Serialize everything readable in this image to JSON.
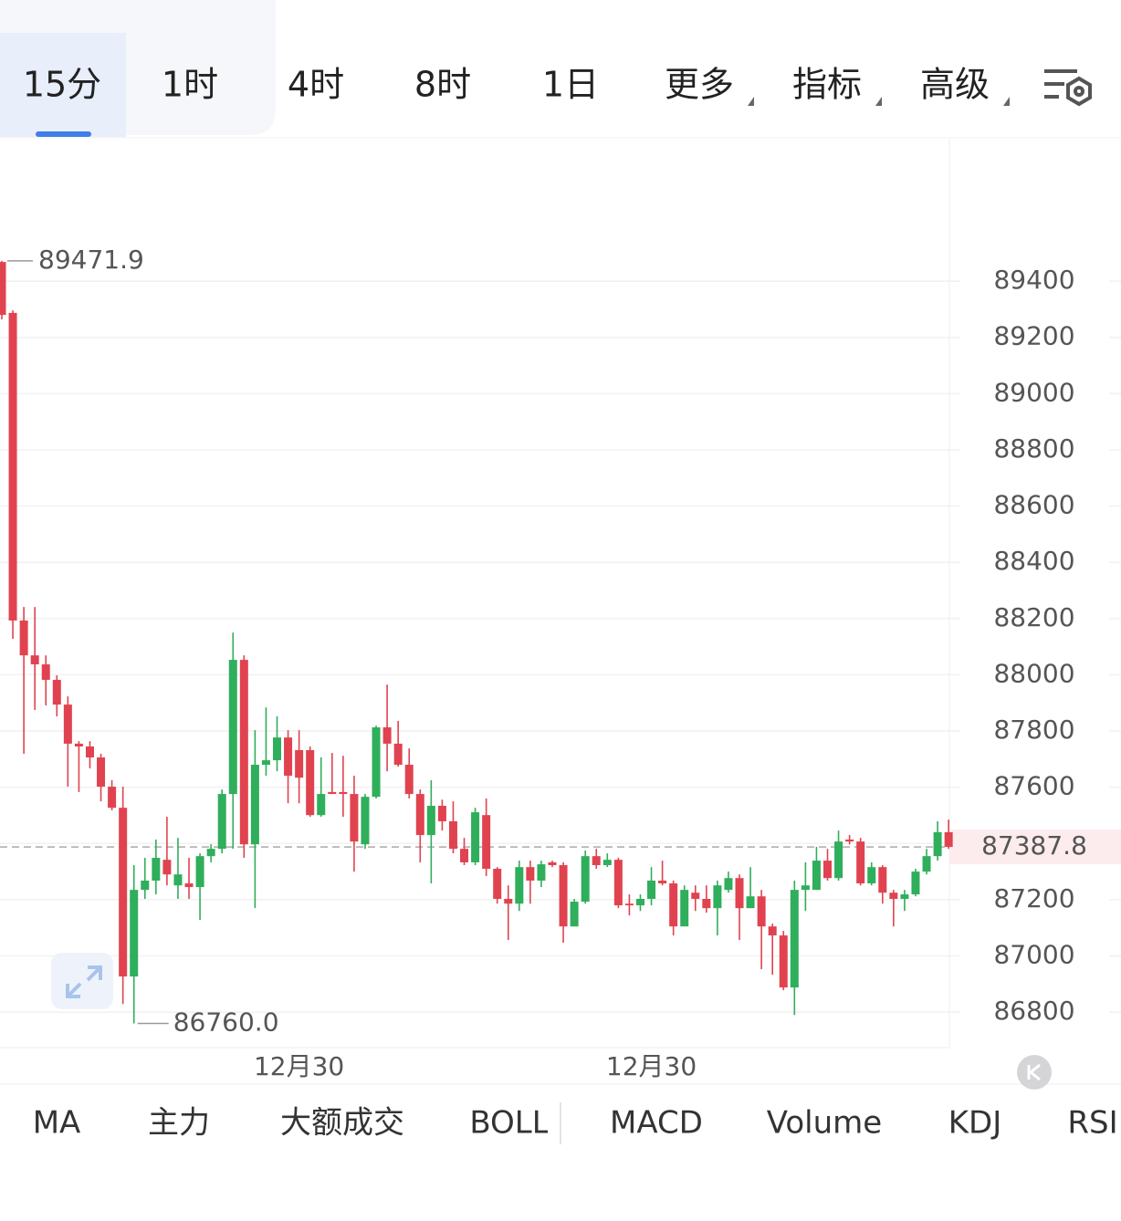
{
  "tabs": {
    "items": [
      "15分",
      "1时",
      "4时",
      "8时",
      "1日",
      "更多",
      "指标",
      "高级"
    ],
    "selected": 0
  },
  "chart_data": {
    "type": "candlestick",
    "categories": [
      null,
      null,
      null,
      null,
      null,
      null,
      null,
      null,
      null,
      null,
      null,
      null,
      null,
      null,
      null,
      null,
      null,
      null,
      null,
      null,
      null,
      null,
      null,
      null,
      null,
      null,
      null,
      "12月30",
      null,
      null,
      null,
      null,
      null,
      null,
      null,
      null,
      null,
      null,
      null,
      null,
      null,
      null,
      null,
      null,
      null,
      null,
      null,
      null,
      null,
      null,
      null,
      null,
      null,
      null,
      null,
      null,
      null,
      null,
      null,
      "12月30",
      null,
      null,
      null,
      null,
      null,
      null,
      null,
      null,
      null,
      null,
      null,
      null,
      null,
      null,
      null,
      null,
      null,
      null,
      null,
      null,
      null,
      null,
      null,
      null,
      null,
      null,
      null
    ],
    "open": [
      89468,
      89287,
      88193,
      88069,
      88037,
      87982,
      87894,
      87755,
      87745,
      87706,
      87602,
      87527,
      86927,
      87235,
      87268,
      87342,
      87251,
      87258,
      87245,
      87355,
      87381,
      87576,
      88053,
      87397,
      87680,
      87696,
      87777,
      87732,
      87732,
      87501,
      87583,
      87583,
      87576,
      87397,
      87566,
      87813,
      87755,
      87680,
      87576,
      87430,
      87534,
      87479,
      87381,
      87333,
      87501,
      87310,
      87203,
      87186,
      87316,
      87268,
      87333,
      87323,
      87105,
      87193,
      87355,
      87323,
      87342,
      87186,
      87180,
      87203,
      87268,
      87258,
      87105,
      87225,
      87203,
      87170,
      87235,
      87277,
      87170,
      87212,
      87105,
      87073,
      86888,
      87235,
      87235,
      87339,
      87277,
      87414,
      87407,
      87258,
      87316,
      87225,
      87203,
      87219,
      87300,
      87355,
      87440
    ],
    "high": [
      89471.9,
      89296,
      88241,
      88241,
      88069,
      87998,
      87923,
      87764,
      87764,
      87719,
      87625,
      87602,
      87323,
      87349,
      87414,
      87495,
      87420,
      87349,
      87365,
      87397,
      87592,
      88150,
      88069,
      87803,
      87884,
      87852,
      87803,
      87803,
      87745,
      87706,
      87722,
      87712,
      87641,
      87576,
      87819,
      87965,
      87836,
      87738,
      87592,
      87625,
      87556,
      87550,
      87420,
      87527,
      87560,
      87316,
      87251,
      87339,
      87339,
      87339,
      87339,
      87333,
      87203,
      87375,
      87381,
      87365,
      87349,
      87219,
      87219,
      87316,
      87339,
      87268,
      87251,
      87251,
      87251,
      87268,
      87300,
      87290,
      87316,
      87235,
      87115,
      87089,
      87268,
      87333,
      87388,
      87381,
      87446,
      87430,
      87420,
      87333,
      87323,
      87235,
      87235,
      87310,
      87381,
      87479,
      87485
    ],
    "low": [
      89264,
      88128,
      87719,
      87875,
      87891,
      87852,
      87602,
      87583,
      87667,
      87550,
      87518,
      86829,
      86760,
      87203,
      87219,
      87251,
      87203,
      87203,
      87128,
      87333,
      87365,
      87381,
      87349,
      87170,
      87641,
      87657,
      87543,
      87543,
      87495,
      87495,
      87576,
      87495,
      87300,
      87381,
      87560,
      87657,
      87673,
      87560,
      87333,
      87258,
      87446,
      87365,
      87323,
      87323,
      87284,
      87186,
      87057,
      87160,
      87186,
      87245,
      87316,
      87047,
      87105,
      87186,
      87310,
      87316,
      87170,
      87144,
      87160,
      87180,
      87251,
      87073,
      87105,
      87160,
      87154,
      87073,
      87225,
      87057,
      87170,
      86953,
      86933,
      86878,
      86790,
      87160,
      87235,
      87268,
      87268,
      87397,
      87251,
      87251,
      87186,
      87105,
      87160,
      87212,
      87290,
      87339,
      87381
    ],
    "close": [
      89280,
      88193,
      88069,
      88037,
      87982,
      87894,
      87755,
      87745,
      87706,
      87602,
      87527,
      86927,
      87235,
      87268,
      87349,
      87290,
      87290,
      87245,
      87355,
      87381,
      87576,
      88053,
      87397,
      87680,
      87696,
      87777,
      87641,
      87634,
      87501,
      87576,
      87576,
      87576,
      87407,
      87566,
      87813,
      87755,
      87680,
      87576,
      87430,
      87534,
      87479,
      87381,
      87333,
      87511,
      87310,
      87203,
      87186,
      87316,
      87268,
      87326,
      87323,
      87105,
      87193,
      87355,
      87323,
      87342,
      87180,
      87180,
      87203,
      87268,
      87258,
      87105,
      87235,
      87203,
      87170,
      87251,
      87277,
      87170,
      87212,
      87105,
      87073,
      86888,
      87235,
      87251,
      87339,
      87277,
      87407,
      87407,
      87258,
      87316,
      87225,
      87203,
      87219,
      87300,
      87355,
      87440,
      87387.8
    ],
    "up_color": "#2fae5b",
    "down_color": "#e0434f",
    "ylim": [
      86674,
      89913
    ],
    "yticks": [
      86800,
      87000,
      87200,
      87400,
      87600,
      87800,
      88000,
      88200,
      88400,
      88600,
      88800,
      89000,
      89200,
      89400
    ],
    "grid": true,
    "high_marker": 89471.9,
    "low_marker": {
      "value": 86760,
      "label": "86760.0"
    },
    "last_price": 87387.8
  },
  "indicators": [
    "MA",
    "主力",
    "大额成交",
    "BOLL",
    "MACD",
    "Volume",
    "KDJ",
    "RSI"
  ]
}
